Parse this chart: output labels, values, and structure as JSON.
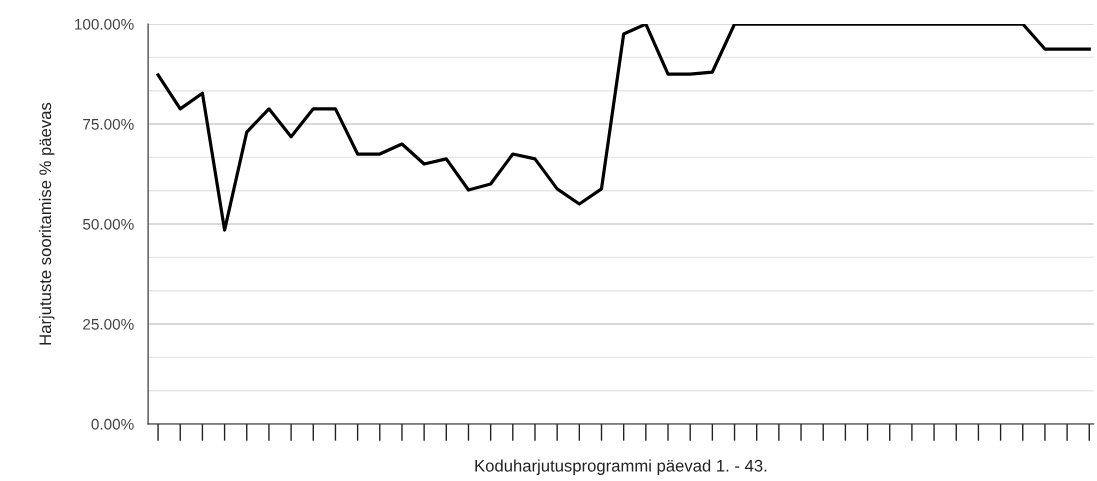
{
  "chart_data": {
    "type": "line",
    "xlabel": "Koduharjutusprogrammi päevad 1. - 43.",
    "ylabel": "Harjutuste sooritamise % päevas",
    "categories": [
      null,
      null,
      null,
      null,
      null,
      null,
      null,
      null,
      null,
      null,
      null,
      null,
      null,
      null,
      null,
      null,
      null,
      null,
      null,
      null,
      null,
      null,
      null,
      null,
      null,
      null,
      null,
      null,
      null,
      null,
      null,
      null,
      null,
      null,
      null,
      null,
      null,
      null,
      null,
      null,
      null,
      null,
      null
    ],
    "series": [
      {
        "color": "#000000",
        "values": [
          87.3,
          78.8,
          82.7,
          48.5,
          73,
          78.8,
          71.8,
          78.8,
          78.8,
          67.5,
          67.5,
          70,
          65,
          66.3,
          58.5,
          60,
          67.5,
          66.3,
          58.8,
          55,
          58.8,
          97.5,
          100,
          87.5,
          87.5,
          88,
          100,
          100,
          100,
          100,
          100,
          100,
          100,
          100,
          100,
          100,
          100,
          100,
          100,
          100,
          93.75,
          93.75,
          93.75
        ]
      }
    ],
    "ylim": [
      0,
      100
    ],
    "yticks": [
      {
        "value": 0,
        "label": "0.00%"
      },
      {
        "value": 8.33,
        "label": null
      },
      {
        "value": 16.67,
        "label": null
      },
      {
        "value": 25,
        "label": "25.00%"
      },
      {
        "value": 33.33,
        "label": null
      },
      {
        "value": 41.67,
        "label": null
      },
      {
        "value": 50,
        "label": "50.00%"
      },
      {
        "value": 58.33,
        "label": null
      },
      {
        "value": 66.67,
        "label": null
      },
      {
        "value": 75,
        "label": "75.00%"
      },
      {
        "value": 83.33,
        "label": null
      },
      {
        "value": 91.67,
        "label": null
      },
      {
        "value": 100,
        "label": "100.00%"
      }
    ],
    "grid": "y",
    "legend": false,
    "marker": "none",
    "line_style": "solid"
  }
}
